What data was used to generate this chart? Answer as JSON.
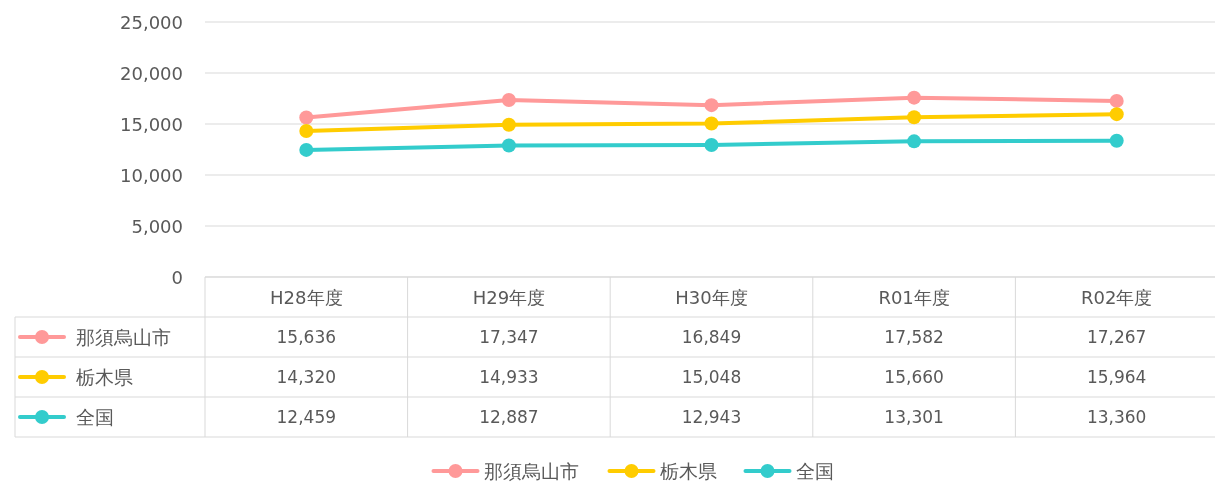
{
  "chart_data": {
    "type": "line",
    "categories": [
      "H28年度",
      "H29年度",
      "H30年度",
      "R01年度",
      "R02年度"
    ],
    "series": [
      {
        "name": "那須烏山市",
        "color": "#ff9999",
        "values": [
          15636,
          17347,
          16849,
          17582,
          17267
        ],
        "value_labels": [
          "15,636",
          "17,347",
          "16,849",
          "17,582",
          "17,267"
        ]
      },
      {
        "name": "栃木県",
        "color": "#ffcc00",
        "values": [
          14320,
          14933,
          15048,
          15660,
          15964
        ],
        "value_labels": [
          "14,320",
          "14,933",
          "15,048",
          "15,660",
          "15,964"
        ]
      },
      {
        "name": "全国",
        "color": "#33cccc",
        "values": [
          12459,
          12887,
          12943,
          13301,
          13360
        ],
        "value_labels": [
          "12,459",
          "12,887",
          "12,943",
          "13,301",
          "13,360"
        ]
      }
    ],
    "ylim": [
      0,
      25000
    ],
    "yticks": [
      {
        "value": 0,
        "label": "0"
      },
      {
        "value": 5000,
        "label": "5,000"
      },
      {
        "value": 10000,
        "label": "10,000"
      },
      {
        "value": 15000,
        "label": "15,000"
      },
      {
        "value": 20000,
        "label": "20,000"
      },
      {
        "value": 25000,
        "label": "25,000"
      }
    ],
    "grid": "y",
    "legend": "bottom",
    "marker": "circle",
    "line_style": "solid"
  }
}
